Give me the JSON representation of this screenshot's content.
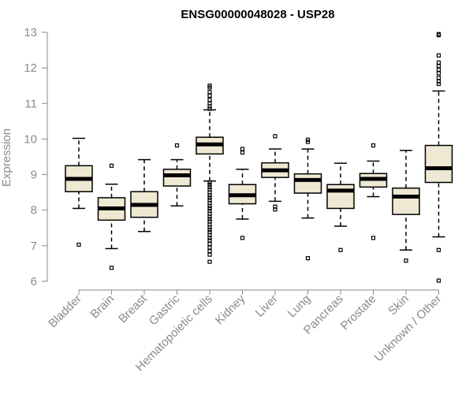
{
  "chart_data": {
    "type": "box",
    "title": "ENSG00000048028 - USP28",
    "xlabel": "",
    "ylabel": "Expression",
    "ylim": [
      6,
      13
    ],
    "yticks": [
      6,
      7,
      8,
      9,
      10,
      11,
      12,
      13
    ],
    "grid": false,
    "box_fill": "#efe8d2",
    "box_stroke": "#000000",
    "axis_color": "#8a8a8a",
    "categories": [
      "Bladder",
      "Brain",
      "Breast",
      "Gastric",
      "Hematopoietic cells",
      "Kidney",
      "Liver",
      "Lung",
      "Pancreas",
      "Prostate",
      "Skin",
      "Unknown / Other"
    ],
    "boxes": [
      {
        "min": 8.05,
        "q1": 8.52,
        "median": 8.88,
        "q3": 9.25,
        "max": 10.02,
        "outliers": [
          7.03
        ]
      },
      {
        "min": 6.92,
        "q1": 7.72,
        "median": 8.05,
        "q3": 8.35,
        "max": 8.73,
        "outliers": [
          6.38,
          9.25
        ]
      },
      {
        "min": 7.4,
        "q1": 7.8,
        "median": 8.15,
        "q3": 8.52,
        "max": 9.42,
        "outliers": []
      },
      {
        "min": 8.12,
        "q1": 8.68,
        "median": 8.98,
        "q3": 9.15,
        "max": 9.42,
        "outliers": [
          9.82
        ]
      },
      {
        "min": 8.82,
        "q1": 9.58,
        "median": 9.85,
        "q3": 10.05,
        "max": 10.82,
        "outliers": [
          11.5,
          11.45,
          11.32,
          11.22,
          11.1,
          11.0,
          10.92,
          10.85,
          8.78,
          8.72,
          8.65,
          8.58,
          8.5,
          8.42,
          8.35,
          8.28,
          8.2,
          8.12,
          8.05,
          7.98,
          7.9,
          7.82,
          7.75,
          7.68,
          7.6,
          7.52,
          7.45,
          7.38,
          7.3,
          7.22,
          7.15,
          7.05,
          6.95,
          6.85,
          6.75,
          6.55
        ]
      },
      {
        "min": 7.75,
        "q1": 8.18,
        "median": 8.42,
        "q3": 8.72,
        "max": 9.15,
        "outliers": [
          9.72,
          9.62,
          7.22
        ]
      },
      {
        "min": 8.25,
        "q1": 8.92,
        "median": 9.12,
        "q3": 9.33,
        "max": 9.72,
        "outliers": [
          10.08,
          8.1,
          8.02
        ]
      },
      {
        "min": 7.78,
        "q1": 8.48,
        "median": 8.85,
        "q3": 9.02,
        "max": 9.72,
        "outliers": [
          9.98,
          9.92,
          6.65
        ]
      },
      {
        "min": 7.55,
        "q1": 8.05,
        "median": 8.55,
        "q3": 8.72,
        "max": 9.32,
        "outliers": [
          6.88
        ]
      },
      {
        "min": 8.38,
        "q1": 8.65,
        "median": 8.88,
        "q3": 9.03,
        "max": 9.38,
        "outliers": [
          9.82,
          7.22
        ]
      },
      {
        "min": 6.88,
        "q1": 7.88,
        "median": 8.38,
        "q3": 8.62,
        "max": 9.68,
        "outliers": [
          6.58
        ]
      },
      {
        "min": 7.25,
        "q1": 8.78,
        "median": 9.18,
        "q3": 9.82,
        "max": 11.35,
        "outliers": [
          12.95,
          12.92,
          12.35,
          12.15,
          12.05,
          11.95,
          11.85,
          11.72,
          11.62,
          11.55,
          6.88,
          6.02
        ]
      }
    ]
  }
}
